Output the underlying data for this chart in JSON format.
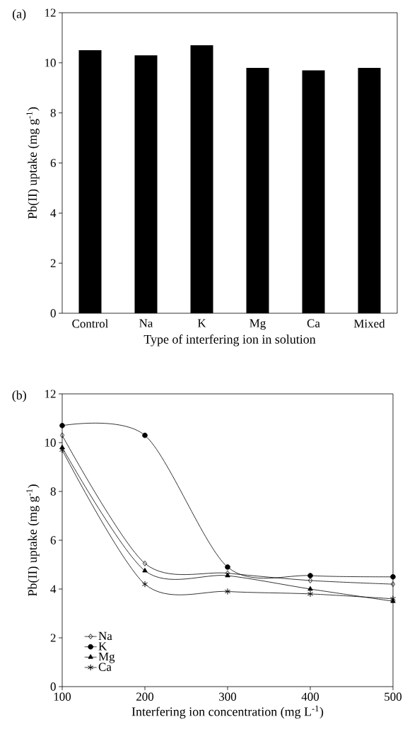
{
  "chart_data": [
    {
      "type": "bar",
      "annotations": [
        "(a)"
      ],
      "xlabel": "Type of interfering ion in solution",
      "ylabel": "Pb(II) uptake (mg g$^{-1}$)",
      "categories": [
        "Control",
        "Na",
        "K",
        "Mg",
        "Ca",
        "Mixed"
      ],
      "values": [
        10.5,
        10.3,
        10.7,
        9.8,
        9.7,
        9.8
      ],
      "color": "#000000",
      "ylim": [
        0,
        12
      ],
      "yticks": [
        0,
        2,
        4,
        6,
        8,
        10,
        12
      ]
    },
    {
      "type": "line",
      "annotations": [
        "(b)"
      ],
      "xlabel": "Interfering ion concentration (mg L$^{-1}$)",
      "ylabel": "Pb(II) uptake (mg g$^{-1}$)",
      "x": [
        100,
        200,
        300,
        400,
        500
      ],
      "legend": "bottom left",
      "series": [
        {
          "name": "Na",
          "color": "#000000",
          "marker": "diamond",
          "values": [
            10.3,
            5.05,
            4.65,
            4.35,
            4.2
          ]
        },
        {
          "name": "K",
          "color": "#000000",
          "marker": "circle",
          "values": [
            10.7,
            10.3,
            4.9,
            4.55,
            4.5
          ]
        },
        {
          "name": "Mg",
          "color": "#000000",
          "marker": "triangle",
          "values": [
            9.8,
            4.75,
            4.55,
            4.0,
            3.5
          ]
        },
        {
          "name": "Ca",
          "color": "#000000",
          "marker": "cross",
          "values": [
            9.7,
            4.2,
            3.9,
            3.8,
            3.6
          ]
        }
      ],
      "xlim": [
        100,
        500
      ],
      "xticks": [
        100,
        200,
        300,
        400,
        500
      ],
      "ylim": [
        0,
        12
      ],
      "yticks": [
        0,
        2,
        4,
        6,
        8,
        10,
        12
      ]
    }
  ]
}
